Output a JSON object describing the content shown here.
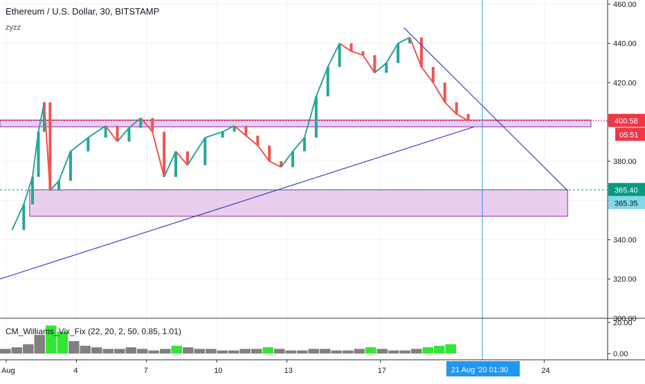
{
  "header": {
    "title": "Ethereum / U.S. Dollar, 30, BITSTAMP",
    "indicator": "zyzz"
  },
  "sub_indicator": {
    "label": "CM_Williams_Vix_Fix (22, 20, 2, 50, 0.85, 1.01)",
    "axis_ticks": [
      "20.00",
      "0.00"
    ]
  },
  "price_tags": {
    "current_price": "400.58",
    "countdown": "05:51",
    "level_a": "365.40",
    "level_b": "365.35"
  },
  "crosshair": {
    "date_label": "21 Aug '20",
    "time_label": "01:30"
  },
  "colors": {
    "up": "#26a69a",
    "down": "#ef5350",
    "zone_fill": "#e1bee7",
    "zone_border": "#9c27b0",
    "trend_line": "#3f3fbf",
    "crosshair": "#2196f3",
    "price_tag": "#f23645",
    "level_a_tag": "#089981",
    "level_b_tag": "#80d8e8",
    "vix_bar": "#808080",
    "vix_bar_high": "#33e633"
  },
  "chart_data": {
    "type": "candlestick",
    "title": "Ethereum / U.S. Dollar, 30, BITSTAMP",
    "y_axis": {
      "ticks": [
        300,
        320,
        340,
        360,
        380,
        400,
        420,
        440,
        460
      ],
      "tick_labels": [
        "300.00",
        "320.00",
        "340.00",
        "360.00",
        "380.00",
        "400.00",
        "420.00",
        "440.00",
        "460.00"
      ],
      "range": [
        300,
        461
      ]
    },
    "x_axis": {
      "tick_labels": [
        "Aug",
        "4",
        "7",
        "10",
        "13",
        "17",
        "24"
      ],
      "range": [
        "2020-08-01",
        "2020-08-27"
      ]
    },
    "grid": true,
    "trend_points": [
      [
        "2020-08-01",
        345
      ],
      [
        "2020-08-01",
        358
      ],
      [
        "2020-08-02",
        372
      ],
      [
        "2020-08-02",
        395
      ],
      [
        "2020-08-02",
        410
      ],
      [
        "2020-08-02",
        365
      ],
      [
        "2020-08-03",
        370
      ],
      [
        "2020-08-03",
        385
      ],
      [
        "2020-08-04",
        392
      ],
      [
        "2020-08-05",
        398
      ],
      [
        "2020-08-05",
        390
      ],
      [
        "2020-08-06",
        397
      ],
      [
        "2020-08-06",
        402
      ],
      [
        "2020-08-07",
        395
      ],
      [
        "2020-08-07",
        372
      ],
      [
        "2020-08-08",
        385
      ],
      [
        "2020-08-08",
        378
      ],
      [
        "2020-08-09",
        392
      ],
      [
        "2020-08-10",
        395
      ],
      [
        "2020-08-10",
        398
      ],
      [
        "2020-08-11",
        393
      ],
      [
        "2020-08-11",
        388
      ],
      [
        "2020-08-12",
        380
      ],
      [
        "2020-08-12",
        377
      ],
      [
        "2020-08-13",
        385
      ],
      [
        "2020-08-13",
        392
      ],
      [
        "2020-08-14",
        413
      ],
      [
        "2020-08-14",
        428
      ],
      [
        "2020-08-15",
        440
      ],
      [
        "2020-08-15",
        436
      ],
      [
        "2020-08-16",
        434
      ],
      [
        "2020-08-16",
        425
      ],
      [
        "2020-08-17",
        430
      ],
      [
        "2020-08-17",
        440
      ],
      [
        "2020-08-18",
        443
      ],
      [
        "2020-08-18",
        428
      ],
      [
        "2020-08-19",
        420
      ],
      [
        "2020-08-19",
        410
      ],
      [
        "2020-08-20",
        404
      ],
      [
        "2020-08-20",
        400.58
      ]
    ],
    "zones": [
      {
        "from": "2020-08-01",
        "to": "2020-08-26",
        "low": 397.5,
        "high": 401
      },
      {
        "from": "2020-08-02",
        "to": "2020-08-25",
        "low": 352,
        "high": 365.4
      }
    ],
    "trend_lines": [
      {
        "from": [
          "2020-08-01",
          320
        ],
        "to": [
          "2020-08-21",
          397.5
        ]
      },
      {
        "from": [
          "2020-08-18",
          448
        ],
        "to": [
          "2020-08-25",
          365
        ]
      }
    ],
    "horizontal_levels": [
      400.58,
      365.4
    ],
    "vix_fix": {
      "name": "CM_Williams_Vix_Fix",
      "range": [
        0,
        20
      ],
      "values": [
        3,
        4,
        6,
        12,
        18,
        14,
        8,
        5,
        4,
        3,
        3,
        4,
        3,
        2,
        3,
        5,
        4,
        3,
        3,
        2,
        2,
        3,
        3,
        4,
        3,
        2,
        2,
        3,
        3,
        2,
        2,
        3,
        4,
        3,
        2,
        2,
        3,
        4,
        5,
        6
      ],
      "highlight": [
        false,
        false,
        false,
        false,
        true,
        true,
        false,
        false,
        false,
        false,
        false,
        false,
        false,
        false,
        false,
        true,
        false,
        false,
        false,
        false,
        false,
        false,
        false,
        true,
        false,
        false,
        false,
        false,
        false,
        false,
        false,
        false,
        true,
        false,
        false,
        false,
        false,
        true,
        true,
        true
      ]
    }
  }
}
